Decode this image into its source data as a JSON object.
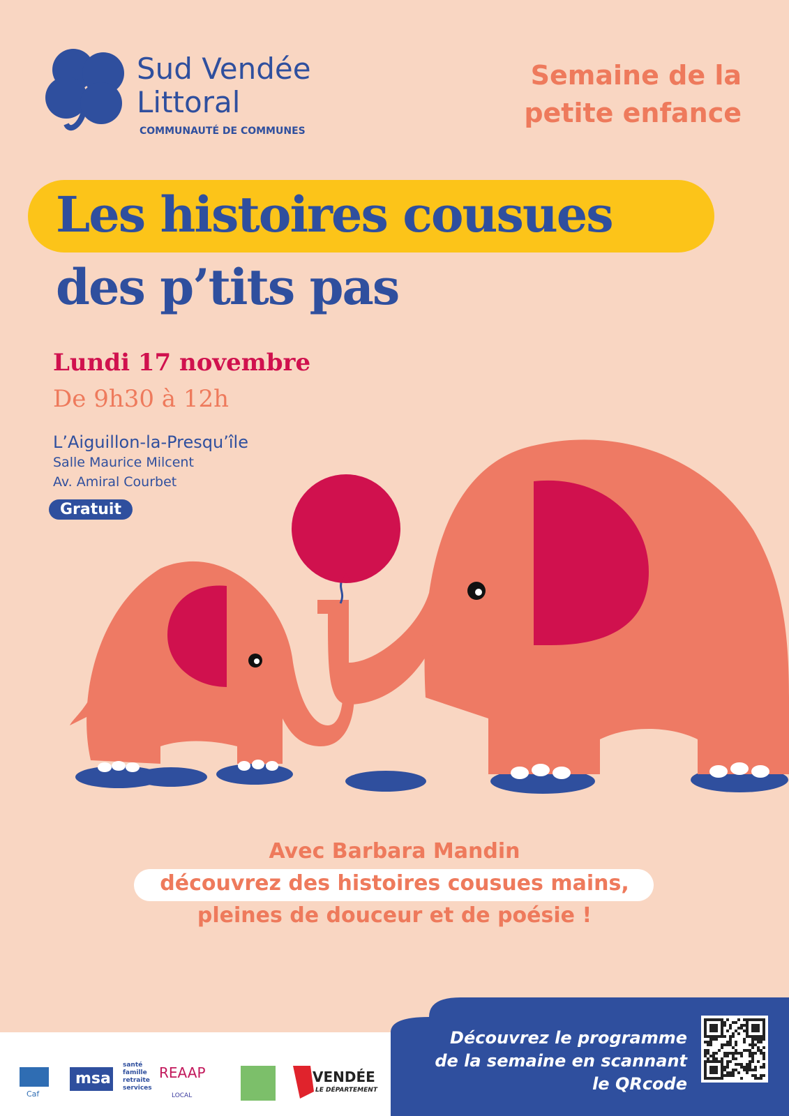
{
  "logo": {
    "line1": "Sud Vendée",
    "line2": "Littoral",
    "subtitle": "COMMUNAUTÉ DE COMMUNES"
  },
  "event_series": [
    "Semaine de la",
    "petite enfance"
  ],
  "title": [
    "Les histoires cousues",
    "des p’tits pas"
  ],
  "date": "Lundi 17 novembre",
  "time": "De 9h30 à 12h",
  "location": {
    "town": "L’Aiguillon-la-Presqu’île",
    "venue": "Salle Maurice Milcent",
    "address": "Av. Amiral Courbet"
  },
  "price": "Gratuit",
  "description": [
    "Avec Barbara Mandin",
    "découvrez des histoires cousues mains,",
    "pleines de douceur et de poésie !"
  ],
  "program": [
    "Découvrez le programme",
    "de la semaine en scannant",
    "le QRcode"
  ],
  "partners": {
    "caf": "Caf",
    "msa": "msa",
    "msa_services": [
      "santé",
      "famille",
      "retraite",
      "services"
    ],
    "reaap": "REAAP",
    "reaap_local": "LOCAL",
    "vendee": "VENDÉE",
    "vendee_sub": "LE DÉPARTEMENT"
  }
}
